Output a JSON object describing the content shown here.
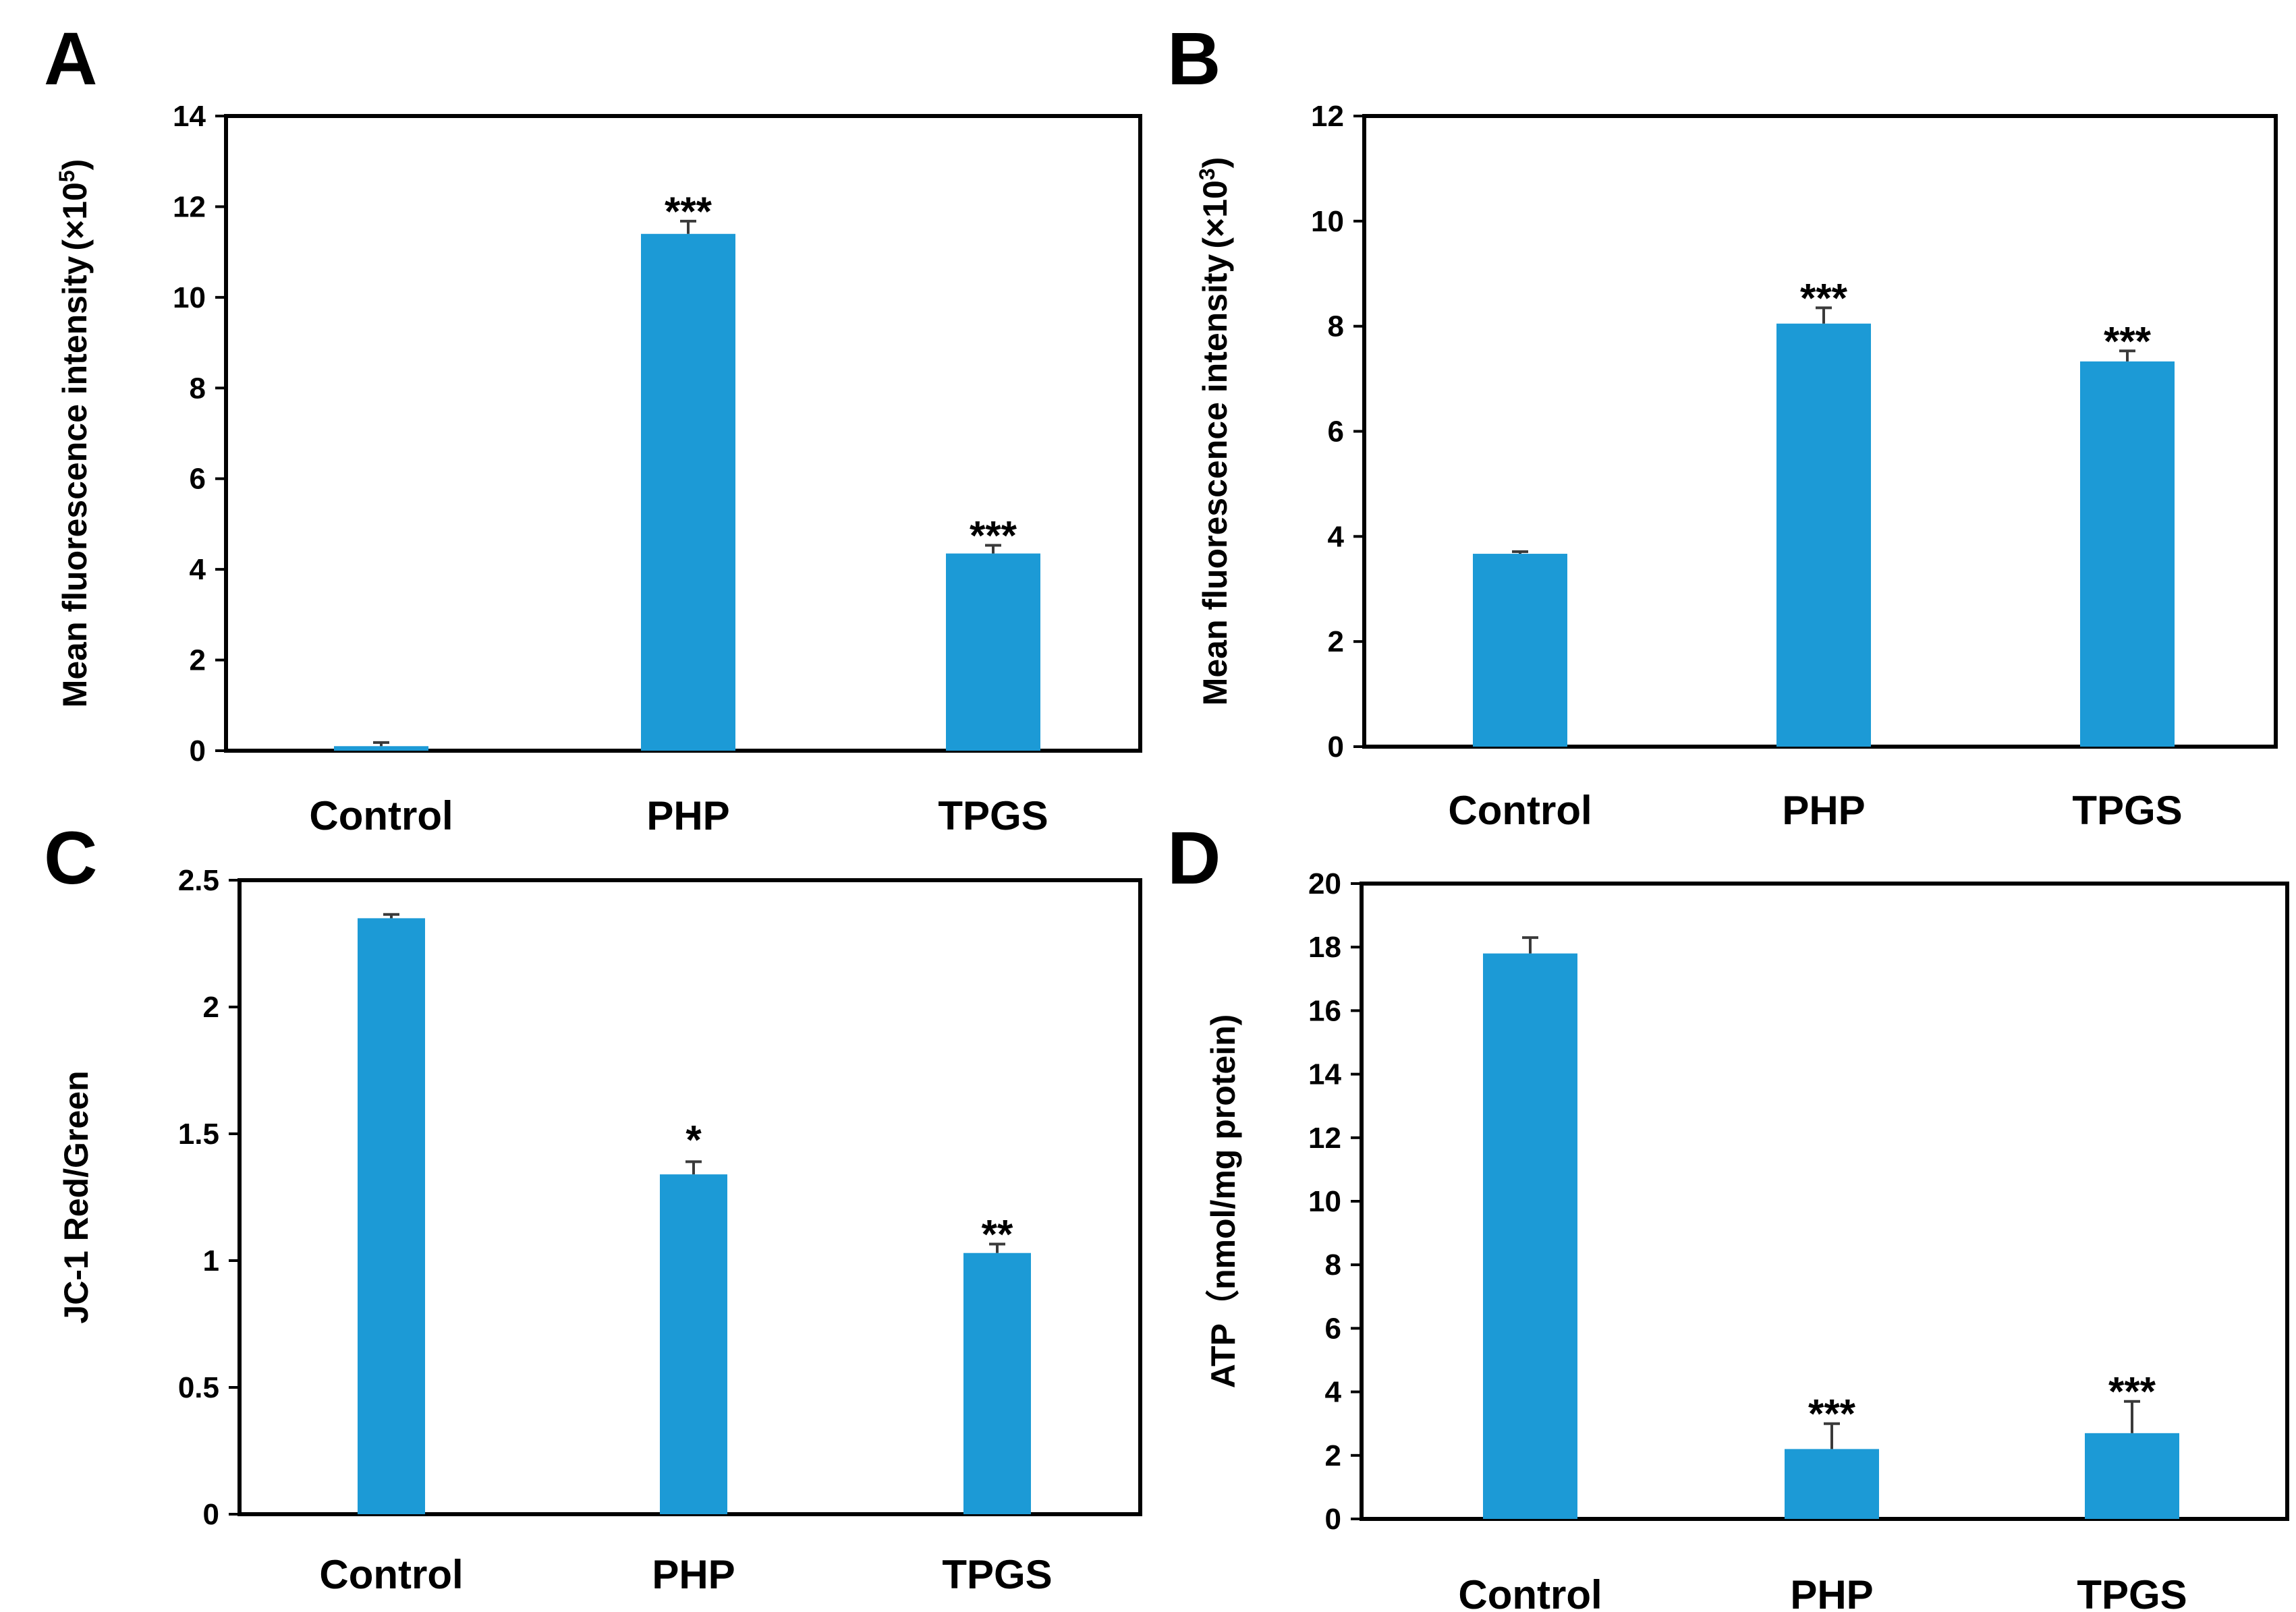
{
  "figure": {
    "colors": {
      "bar": "#1C9AD6",
      "axis": "#000000"
    }
  },
  "chart_data": [
    {
      "type": "bar",
      "panel_label": "A",
      "ylabel": "Mean fluorescence intensity (×10⁵)",
      "ylabel_main": "Mean fluorescence intensity",
      "ylabel_unit": "(×10",
      "ylabel_exp": "5",
      "ylabel_close": ")",
      "categories": [
        "Control",
        "PHP",
        "TPGS"
      ],
      "values": [
        0.1,
        11.4,
        4.35
      ],
      "errors": [
        0.08,
        0.28,
        0.18
      ],
      "significance": [
        "",
        "***",
        "***"
      ],
      "ylim": [
        0,
        14
      ],
      "yticks": [
        0,
        2,
        4,
        6,
        8,
        10,
        12,
        14
      ],
      "ytick_labels": [
        "0",
        "2",
        "4",
        "6",
        "8",
        "10",
        "12",
        "14"
      ]
    },
    {
      "type": "bar",
      "panel_label": "B",
      "ylabel": "Mean fluorescence intensity (×10³)",
      "ylabel_main": "Mean fluorescence intensity",
      "ylabel_unit": "(×10",
      "ylabel_exp": "3",
      "ylabel_close": ")",
      "categories": [
        "Control",
        "PHP",
        "TPGS"
      ],
      "values": [
        3.67,
        8.05,
        7.33
      ],
      "errors": [
        0.04,
        0.3,
        0.2
      ],
      "significance": [
        "",
        "***",
        "***"
      ],
      "ylim": [
        0,
        12
      ],
      "yticks": [
        0,
        2,
        4,
        6,
        8,
        10,
        12
      ],
      "ytick_labels": [
        "0",
        "2",
        "4",
        "6",
        "8",
        "10",
        "12"
      ]
    },
    {
      "type": "bar",
      "panel_label": "C",
      "ylabel": "JC-1 Red/Green",
      "ylabel_main": "JC-1 Red/Green",
      "categories": [
        "Control",
        "PHP",
        "TPGS"
      ],
      "values": [
        2.35,
        1.34,
        1.03
      ],
      "errors": [
        0.015,
        0.05,
        0.035
      ],
      "significance": [
        "",
        "*",
        "**"
      ],
      "ylim": [
        0,
        2.5
      ],
      "yticks": [
        0,
        0.5,
        1,
        1.5,
        2,
        2.5
      ],
      "ytick_labels": [
        "0",
        "0.5",
        "1",
        "1.5",
        "2",
        "2.5"
      ]
    },
    {
      "type": "bar",
      "panel_label": "D",
      "ylabel": "ATP (nmol/mg protein)",
      "ylabel_main": "ATP（nmol/mg protein)",
      "categories": [
        "Control",
        "PHP",
        "TPGS"
      ],
      "values": [
        17.8,
        2.2,
        2.7
      ],
      "errors": [
        0.5,
        0.8,
        1.0
      ],
      "significance": [
        "",
        "***",
        "***"
      ],
      "ylim": [
        0,
        20
      ],
      "yticks": [
        0,
        2,
        4,
        6,
        8,
        10,
        12,
        14,
        16,
        18,
        20
      ],
      "ytick_labels": [
        "0",
        "2",
        "4",
        "6",
        "8",
        "10",
        "12",
        "14",
        "16",
        "18",
        "20"
      ]
    }
  ]
}
